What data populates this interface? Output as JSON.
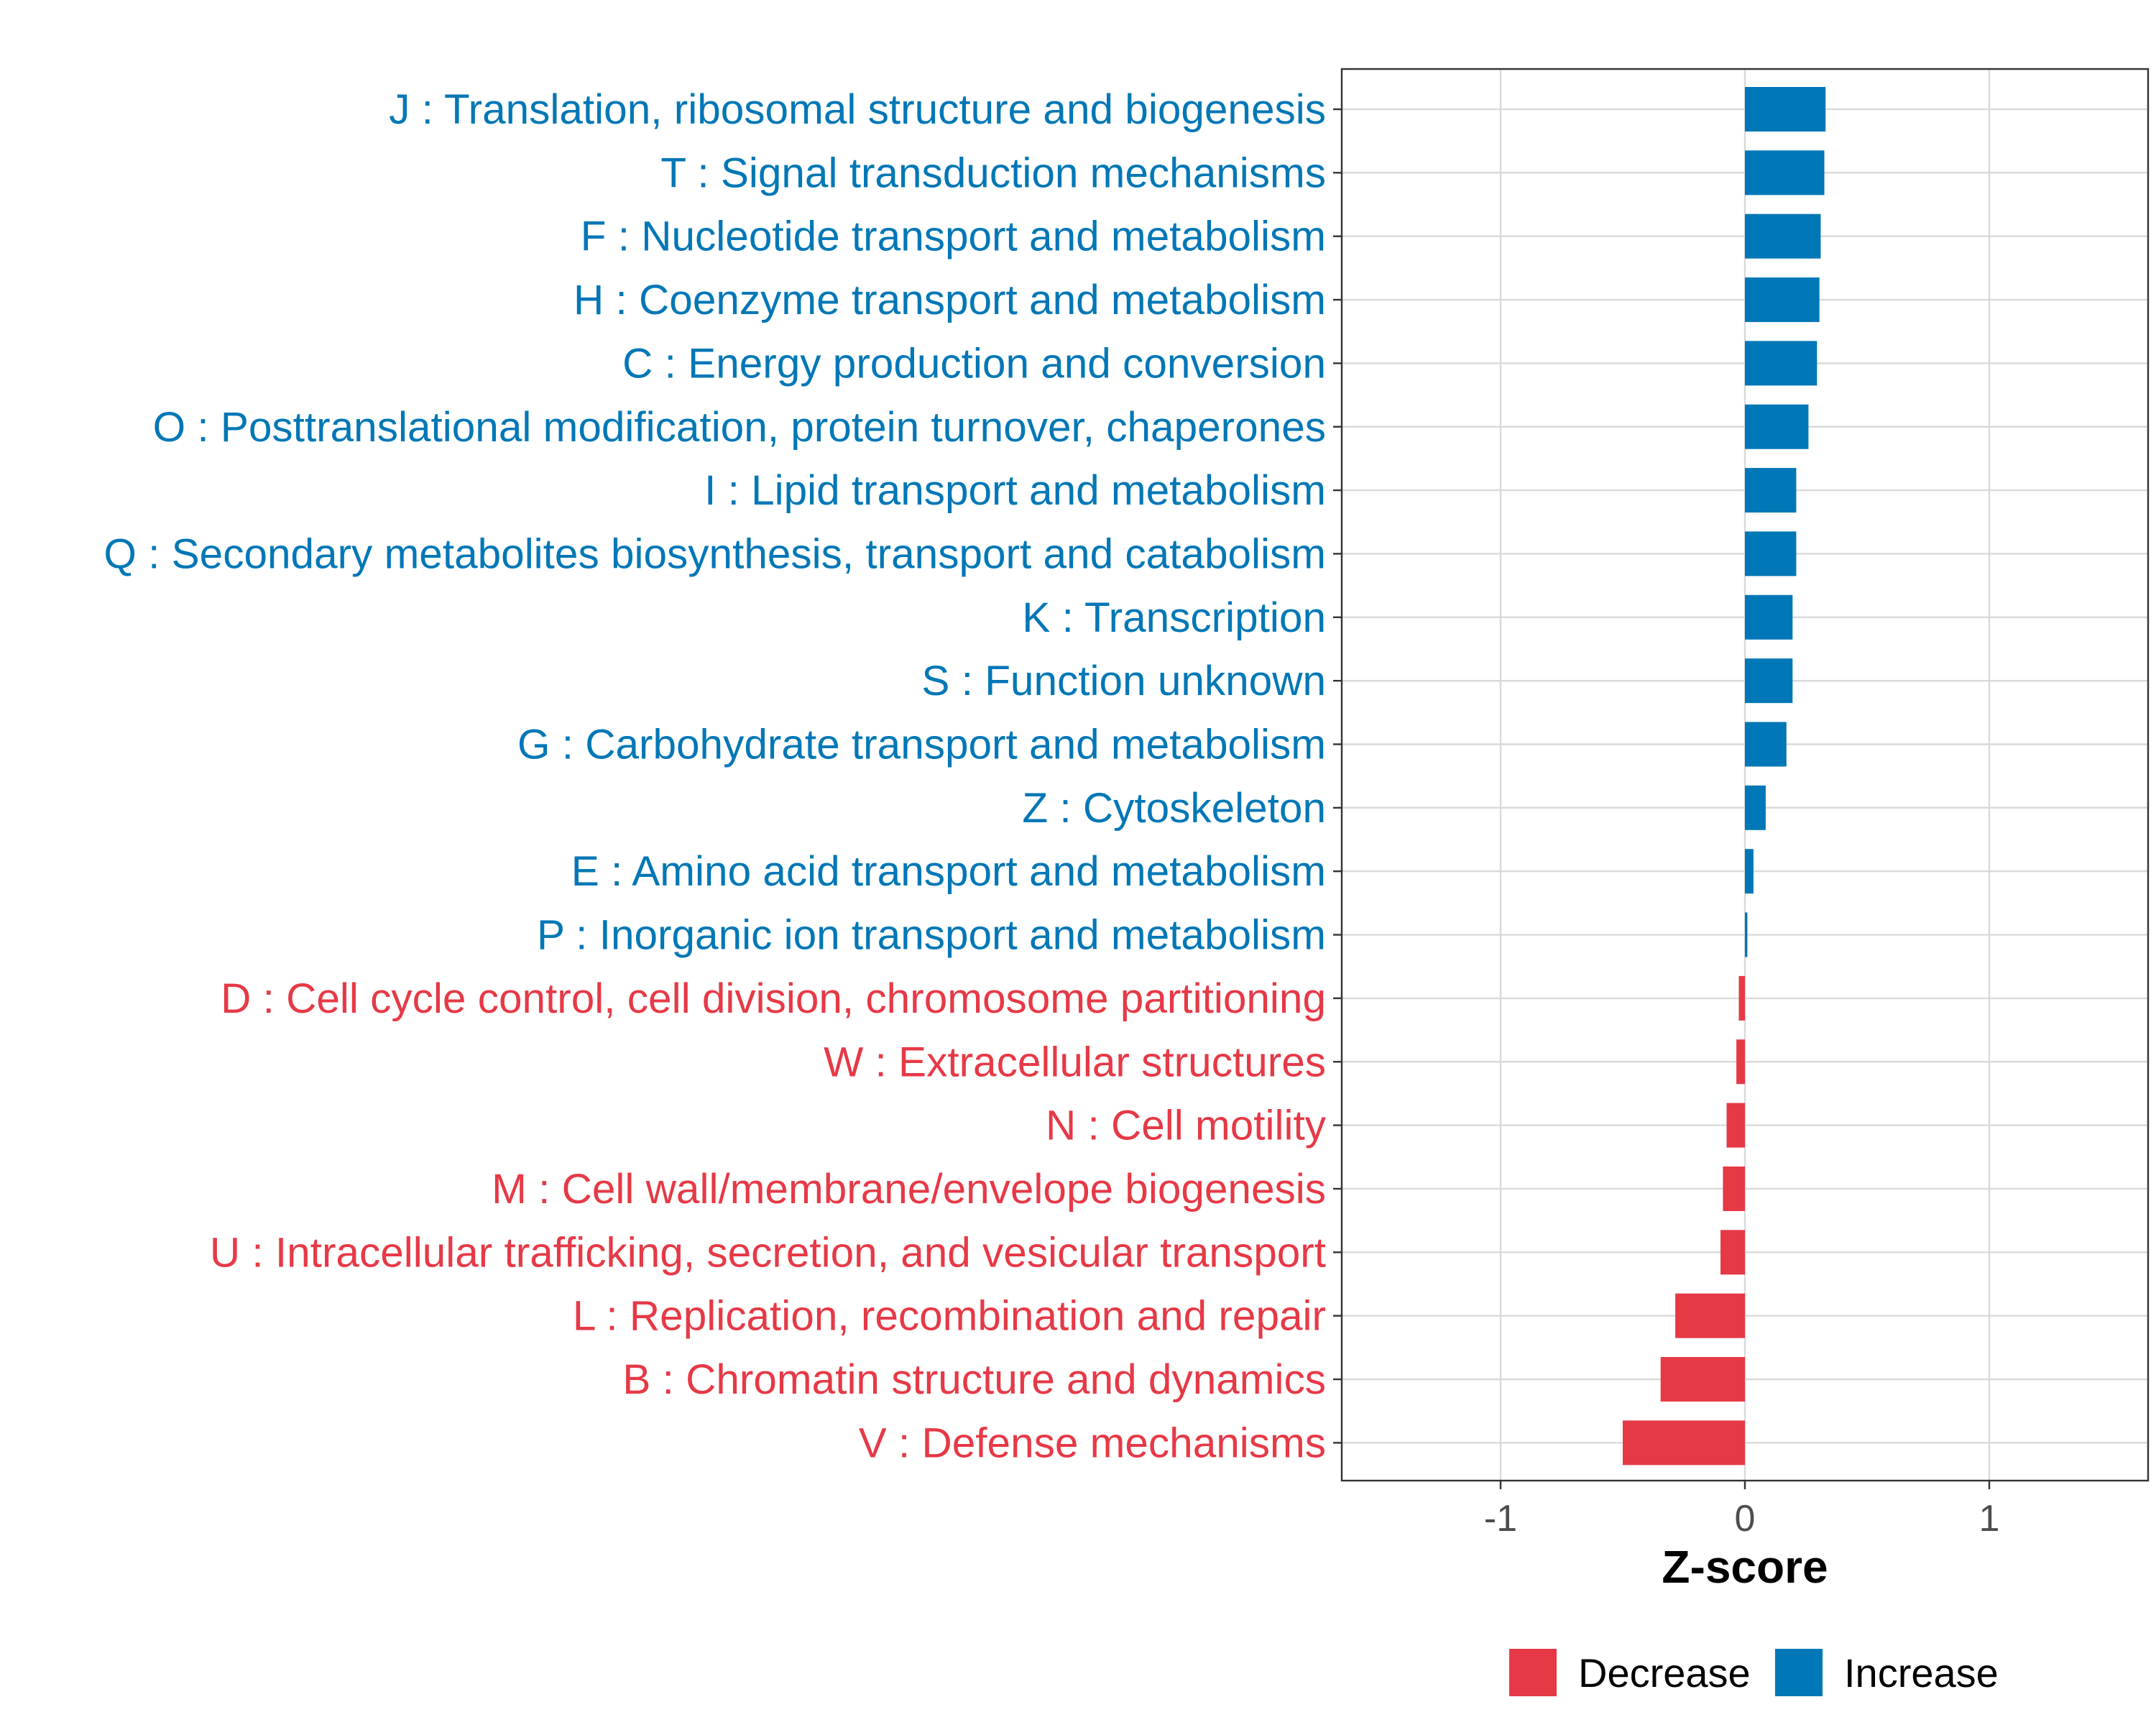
{
  "chart_data": {
    "type": "bar",
    "orientation": "horizontal",
    "title": "",
    "xlabel": "Z-score",
    "ylabel": "",
    "xlim": [
      -1.65,
      1.65
    ],
    "xticks": [
      -1,
      0,
      1
    ],
    "xtick_labels": [
      "-1",
      "0",
      "1"
    ],
    "grid": true,
    "categories": [
      "J : Translation, ribosomal structure and biogenesis",
      "T : Signal transduction mechanisms",
      "F : Nucleotide transport and metabolism",
      "H : Coenzyme transport and metabolism",
      "C : Energy production and conversion",
      "O : Posttranslational modification, protein turnover, chaperones",
      "I : Lipid transport and metabolism",
      "Q : Secondary metabolites biosynthesis, transport and catabolism",
      "K : Transcription",
      "S : Function unknown",
      "G : Carbohydrate transport and metabolism",
      "Z : Cytoskeleton",
      "E : Amino acid transport and metabolism",
      "P : Inorganic ion transport and metabolism",
      "D : Cell cycle control, cell division, chromosome partitioning",
      "W : Extracellular structures",
      "N : Cell motility",
      "M : Cell wall/membrane/envelope biogenesis",
      "U : Intracellular trafficking, secretion, and vesicular transport",
      "L : Replication, recombination and repair",
      "B : Chromatin structure and dynamics",
      "V : Defense mechanisms"
    ],
    "values": [
      0.33,
      0.325,
      0.31,
      0.305,
      0.295,
      0.26,
      0.21,
      0.21,
      0.195,
      0.195,
      0.17,
      0.085,
      0.035,
      0.01,
      -0.025,
      -0.035,
      -0.075,
      -0.09,
      -0.1,
      -0.285,
      -0.345,
      -0.5
    ],
    "groups": [
      "Increase",
      "Increase",
      "Increase",
      "Increase",
      "Increase",
      "Increase",
      "Increase",
      "Increase",
      "Increase",
      "Increase",
      "Increase",
      "Increase",
      "Increase",
      "Increase",
      "Decrease",
      "Decrease",
      "Decrease",
      "Decrease",
      "Decrease",
      "Decrease",
      "Decrease",
      "Decrease"
    ],
    "legend": {
      "placement": "bottom",
      "entries": [
        {
          "label": "Decrease",
          "color": "#e63946"
        },
        {
          "label": "Increase",
          "color": "#0077b6"
        }
      ]
    },
    "colors": {
      "Decrease": "#e63946",
      "Increase": "#0077b6"
    }
  }
}
